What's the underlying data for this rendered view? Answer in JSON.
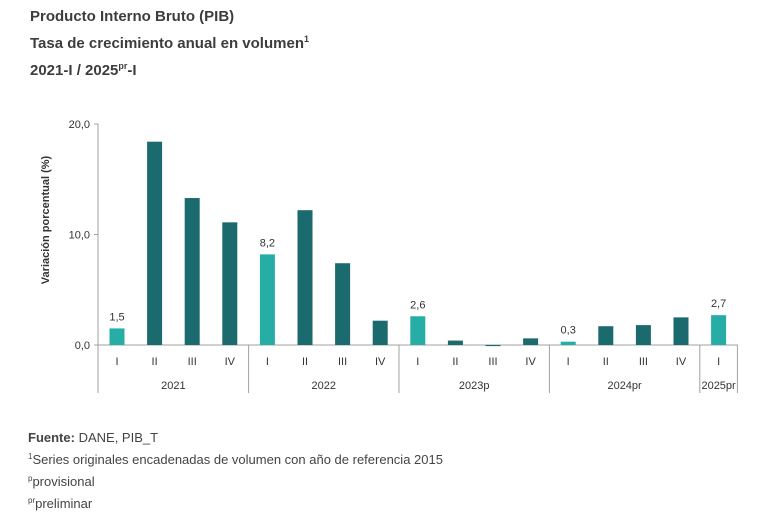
{
  "header": {
    "title_line1": "Producto Interno Bruto (PIB)",
    "title_line2_text": "Tasa de crecimiento anual en volumen",
    "title_line2_sup": "1",
    "title_line3_pre": "2021-I / 2025",
    "title_line3_sup": "pr",
    "title_line3_post": "-I"
  },
  "footer": {
    "source_label": "Fuente:",
    "source_value": "DANE, PIB_T",
    "note1_sup": "1",
    "note1_text": "Series originales encadenadas de volumen con año de referencia 2015",
    "note2_sup": "p",
    "note2_text": "provisional",
    "note3_sup": "pr",
    "note3_text": "preliminar"
  },
  "chart_data": {
    "type": "bar",
    "ylabel": "Variación porcentual (%)",
    "ylim": [
      0,
      20
    ],
    "yticks": [
      0,
      10,
      20
    ],
    "ytick_labels": [
      "0,0",
      "10,0",
      "20,0"
    ],
    "categories": [
      "I",
      "II",
      "III",
      "IV",
      "I",
      "II",
      "III",
      "IV",
      "I",
      "II",
      "III",
      "IV",
      "I",
      "II",
      "III",
      "IV",
      "I"
    ],
    "values": [
      1.5,
      18.4,
      13.3,
      11.1,
      8.2,
      12.2,
      7.4,
      2.2,
      2.6,
      0.4,
      -0.1,
      0.6,
      0.3,
      1.7,
      1.8,
      2.5,
      2.7
    ],
    "data_labels": [
      "1,5",
      "",
      "",
      "",
      "8,2",
      "",
      "",
      "",
      "2,6",
      "",
      "",
      "",
      "0,3",
      "",
      "",
      "",
      "2,7"
    ],
    "highlighted": [
      true,
      false,
      false,
      false,
      true,
      false,
      false,
      false,
      true,
      false,
      false,
      false,
      true,
      false,
      false,
      false,
      true
    ],
    "groups": [
      {
        "label": "2021",
        "count": 4
      },
      {
        "label": "2022",
        "count": 4
      },
      {
        "label": "2023p",
        "count": 4
      },
      {
        "label": "2024pr",
        "count": 4
      },
      {
        "label": "2025pr",
        "count": 1
      }
    ],
    "colors": {
      "highlight": "#26ada6",
      "normal": "#1a6a6e",
      "axis": "#a0a0a0",
      "text": "#333333"
    },
    "grid": false,
    "legend": "none"
  }
}
